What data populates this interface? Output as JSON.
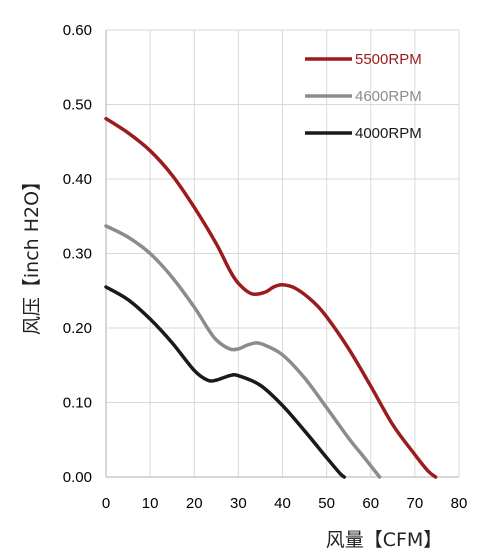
{
  "chart_data": {
    "type": "line",
    "xlabel": "风量【CFM】",
    "ylabel": "风压【inch H2O】",
    "xlim": [
      0,
      80
    ],
    "ylim": [
      0,
      0.6
    ],
    "x_ticks": [
      "0",
      "10",
      "20",
      "30",
      "40",
      "50",
      "60",
      "70",
      "80"
    ],
    "y_ticks": [
      "0.00",
      "0.10",
      "0.20",
      "0.30",
      "0.40",
      "0.50",
      "0.60"
    ],
    "grid": true,
    "legend_position": "top-right",
    "series": [
      {
        "name": "5500RPM",
        "color": "#9b1c1c",
        "points": [
          [
            0,
            0.481
          ],
          [
            5,
            0.462
          ],
          [
            10,
            0.438
          ],
          [
            15,
            0.405
          ],
          [
            20,
            0.362
          ],
          [
            25,
            0.313
          ],
          [
            28,
            0.278
          ],
          [
            30,
            0.26
          ],
          [
            33,
            0.246
          ],
          [
            36,
            0.248
          ],
          [
            38,
            0.255
          ],
          [
            40,
            0.258
          ],
          [
            43,
            0.253
          ],
          [
            47,
            0.235
          ],
          [
            50,
            0.215
          ],
          [
            55,
            0.172
          ],
          [
            60,
            0.122
          ],
          [
            65,
            0.07
          ],
          [
            70,
            0.03
          ],
          [
            73,
            0.008
          ],
          [
            74.7,
            0.0
          ]
        ]
      },
      {
        "name": "4600RPM",
        "color": "#8c8c8c",
        "points": [
          [
            0,
            0.337
          ],
          [
            5,
            0.322
          ],
          [
            10,
            0.3
          ],
          [
            15,
            0.268
          ],
          [
            20,
            0.228
          ],
          [
            23,
            0.2
          ],
          [
            25,
            0.184
          ],
          [
            28,
            0.172
          ],
          [
            30,
            0.172
          ],
          [
            32,
            0.177
          ],
          [
            34,
            0.18
          ],
          [
            36,
            0.177
          ],
          [
            40,
            0.164
          ],
          [
            45,
            0.133
          ],
          [
            50,
            0.093
          ],
          [
            55,
            0.052
          ],
          [
            58,
            0.03
          ],
          [
            60,
            0.015
          ],
          [
            62,
            0.0
          ]
        ]
      },
      {
        "name": "4000RPM",
        "color": "#1a1a1a",
        "points": [
          [
            0,
            0.255
          ],
          [
            5,
            0.238
          ],
          [
            10,
            0.212
          ],
          [
            15,
            0.18
          ],
          [
            20,
            0.143
          ],
          [
            23,
            0.13
          ],
          [
            25,
            0.13
          ],
          [
            28,
            0.136
          ],
          [
            30,
            0.136
          ],
          [
            35,
            0.123
          ],
          [
            40,
            0.096
          ],
          [
            45,
            0.062
          ],
          [
            50,
            0.026
          ],
          [
            53,
            0.005
          ],
          [
            54,
            0.0
          ]
        ]
      }
    ]
  }
}
